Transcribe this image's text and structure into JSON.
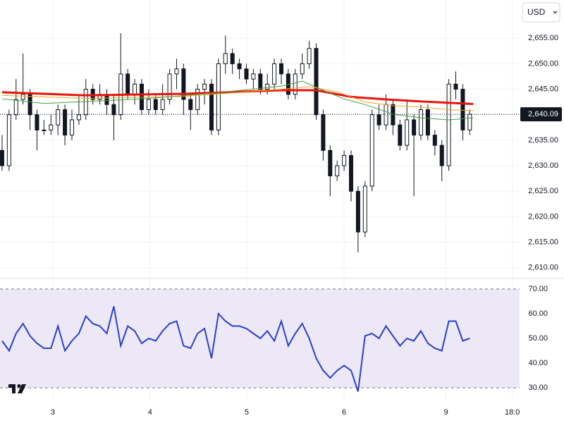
{
  "chart_data": [
    {
      "type": "candlestick",
      "currency": "USD",
      "last_price": {
        "value": 2640.09,
        "label": "2,640.09"
      },
      "open": [
        2633,
        2630,
        2640,
        2643,
        2644,
        2640,
        2637,
        2637,
        2638,
        2641,
        2636,
        2639,
        2640,
        2645,
        2643,
        2644,
        2642,
        2640,
        2648,
        2644,
        2646,
        2641,
        2643,
        2641,
        2643,
        2648,
        2649,
        2643,
        2641,
        2645,
        2646,
        2637,
        2650,
        2652,
        2650,
        2649,
        2647,
        2648,
        2645,
        2646,
        2650,
        2648,
        2644,
        2648,
        2650,
        2653,
        2640,
        2633,
        2628,
        2630,
        2632,
        2625,
        2617,
        2626,
        2640,
        2638,
        2642,
        2638,
        2634,
        2639,
        2636,
        2641,
        2636,
        2634,
        2630,
        2646,
        2645,
        2637
      ],
      "high": [
        2636,
        2641,
        2647,
        2652,
        2645,
        2641,
        2639,
        2640,
        2642,
        2642,
        2641,
        2644,
        2647,
        2646,
        2646,
        2645,
        2644,
        2656,
        2649,
        2647,
        2647,
        2645,
        2644,
        2646,
        2649,
        2651,
        2650,
        2644,
        2646,
        2647,
        2647,
        2651,
        2655.5,
        2653,
        2651,
        2650,
        2649,
        2649,
        2648,
        2651,
        2651,
        2649,
        2649,
        2652,
        2654.5,
        2654,
        2641,
        2634,
        2631,
        2633,
        2633,
        2626,
        2627,
        2641,
        2642,
        2644,
        2643,
        2639,
        2643,
        2640,
        2642,
        2642,
        2637,
        2635,
        2647,
        2648.5,
        2646,
        2641
      ],
      "low": [
        2629,
        2629,
        2639,
        2642,
        2637,
        2633,
        2636,
        2636,
        2636,
        2634,
        2635,
        2638,
        2639,
        2642,
        2642,
        2640,
        2635,
        2639,
        2643,
        2642,
        2640,
        2640,
        2640,
        2640,
        2642,
        2645,
        2640,
        2637,
        2640,
        2642,
        2636,
        2636,
        2648,
        2648,
        2647,
        2646,
        2645,
        2644,
        2644,
        2645,
        2646,
        2643,
        2643,
        2647,
        2649,
        2639,
        2631,
        2624,
        2627,
        2629,
        2623,
        2613,
        2616,
        2625,
        2637,
        2637,
        2636,
        2633,
        2633,
        2624,
        2635,
        2635,
        2632,
        2627,
        2629,
        2643,
        2635,
        2636
      ],
      "close": [
        2630,
        2640,
        2643,
        2644,
        2640,
        2637,
        2637,
        2638,
        2641,
        2636,
        2639,
        2640,
        2645,
        2643,
        2644,
        2642,
        2640,
        2648,
        2644,
        2646,
        2641,
        2643,
        2641,
        2643,
        2648,
        2649,
        2643,
        2641,
        2645,
        2646,
        2637,
        2650,
        2652,
        2650,
        2649,
        2647,
        2648,
        2645,
        2646,
        2650,
        2648,
        2644,
        2648,
        2650,
        2653,
        2640,
        2633,
        2628,
        2630,
        2632,
        2625,
        2617,
        2626,
        2640,
        2638,
        2642,
        2638,
        2634,
        2639,
        2636,
        2641,
        2636,
        2634,
        2630,
        2646,
        2645,
        2637,
        2640.09
      ],
      "colors": {
        "up": "#ffffff",
        "down": "#131722",
        "wick": "#131722"
      },
      "series": [
        {
          "color": "#e8140c",
          "width": 3,
          "x": [
            0,
            12,
            26,
            40,
            45,
            50,
            55,
            60,
            67.5
          ],
          "values": [
            2644.4,
            2643.8,
            2644.1,
            2644.8,
            2644.8,
            2643.5,
            2643,
            2642.6,
            2642.1
          ]
        },
        {
          "color": "#f5a623",
          "width": 1,
          "x": [
            0,
            12,
            26,
            40,
            44,
            48,
            52,
            56,
            60,
            64,
            67.5
          ],
          "values": [
            2643.8,
            2643.2,
            2643.6,
            2645,
            2645.5,
            2644.5,
            2642.5,
            2641.8,
            2641.5,
            2641,
            2640.8
          ]
        },
        {
          "color": "#43a047",
          "width": 1,
          "x": [
            0,
            6,
            20,
            30,
            40,
            43,
            46,
            49,
            52,
            56,
            60,
            64,
            67.5
          ],
          "values": [
            2643.1,
            2642.2,
            2643.1,
            2644.2,
            2645.6,
            2646.6,
            2644.8,
            2643.1,
            2642,
            2640.1,
            2639.4,
            2639,
            2639.4
          ]
        }
      ],
      "xlim": [
        -0.3,
        74.14
      ],
      "xticks": [
        {
          "value": 7.27,
          "label": "3"
        },
        {
          "value": 21.2,
          "label": "4"
        },
        {
          "value": 35.05,
          "label": "5"
        },
        {
          "value": 49,
          "label": "6"
        },
        {
          "value": 63.6,
          "label": "9"
        },
        {
          "value": 73.1,
          "label": "18:0"
        }
      ],
      "ylim": [
        2608.3,
        2662.5
      ],
      "yticks": [
        {
          "value": 2655,
          "label": "2,655.00"
        },
        {
          "value": 2650,
          "label": "2,650.00"
        },
        {
          "value": 2645,
          "label": "2,645.00"
        },
        {
          "value": 2640,
          "label": "2,640.00"
        },
        {
          "value": 2635,
          "label": "2,635.00"
        },
        {
          "value": 2630,
          "label": "2,630.00"
        },
        {
          "value": 2625,
          "label": "2,625.00"
        },
        {
          "value": 2620,
          "label": "2,620.00"
        },
        {
          "value": 2615,
          "label": "2,615.00"
        },
        {
          "value": 2610,
          "label": "2,610.00"
        }
      ],
      "grid": true
    },
    {
      "type": "line",
      "values": [
        49,
        45,
        52,
        56,
        51,
        48,
        46,
        46,
        55,
        45,
        49,
        52,
        59,
        56,
        55,
        52,
        63,
        47,
        55,
        53,
        48,
        50,
        49,
        53,
        56,
        57,
        47,
        46,
        52,
        54,
        42,
        60,
        57,
        55,
        55,
        54,
        52,
        50,
        53,
        49,
        57,
        47,
        52,
        56,
        50,
        42,
        37,
        34,
        37,
        39,
        37,
        28.5,
        51,
        52,
        50,
        55,
        51,
        47,
        50,
        49,
        53,
        48,
        46,
        45,
        57,
        57,
        49,
        50
      ],
      "color": "#2b3fce",
      "band_color": "#ece8f6",
      "xlim": [
        -0.3,
        74.14
      ],
      "ylim": [
        24.9,
        73.4
      ],
      "yticks": [
        {
          "value": 70,
          "label": "70.00"
        },
        {
          "value": 60,
          "label": "60.00"
        },
        {
          "value": 50,
          "label": "50.00"
        },
        {
          "value": 40,
          "label": "40.00"
        },
        {
          "value": 30,
          "label": "30.00"
        }
      ]
    }
  ]
}
